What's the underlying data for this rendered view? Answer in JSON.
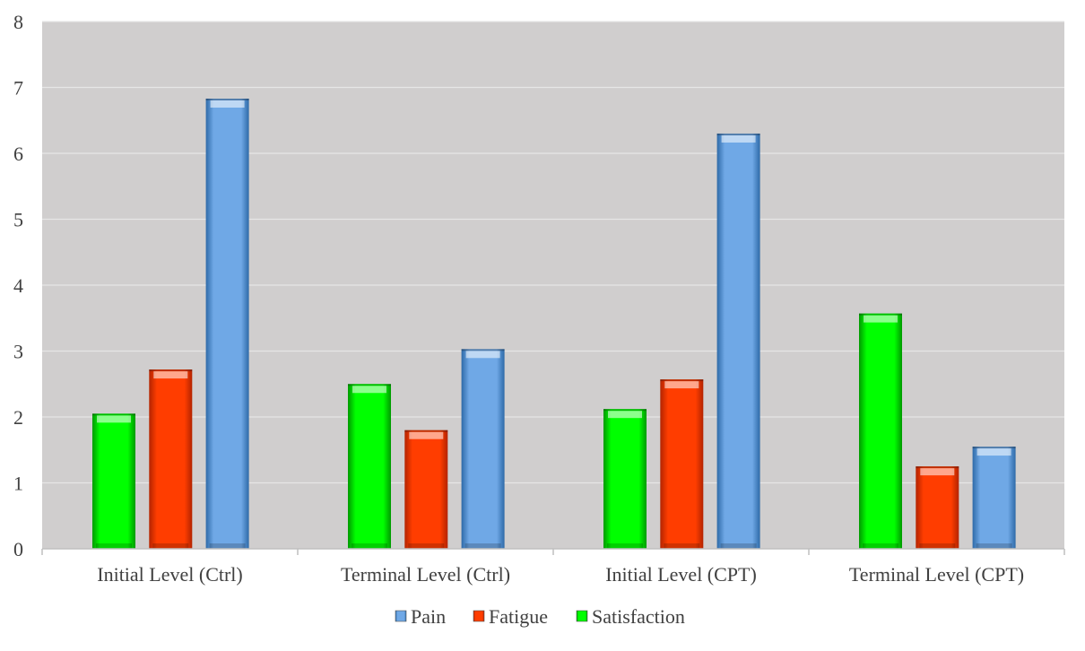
{
  "chart_data": {
    "type": "bar",
    "title": "",
    "xlabel": "",
    "ylabel": "",
    "ylim": [
      0,
      8
    ],
    "yticks": [
      "0",
      "1",
      "2",
      "3",
      "4",
      "5",
      "6",
      "7",
      "8"
    ],
    "grid": true,
    "legend_position": "bottom",
    "categories": [
      "Initial Level (Ctrl)",
      "Terminal Level (Ctrl)",
      "Initial Level (CPT)",
      "Terminal Level (CPT)"
    ],
    "series": [
      {
        "name": "Satisfaction",
        "color": "#00e600",
        "values": [
          2.05,
          2.5,
          2.12,
          3.57
        ]
      },
      {
        "name": "Fatigue",
        "color": "#ff3300",
        "values": [
          2.72,
          1.8,
          2.57,
          1.25
        ]
      },
      {
        "name": "Pain",
        "color": "#5b9bd5",
        "values": [
          6.83,
          3.03,
          6.3,
          1.55
        ]
      }
    ],
    "legend_order": [
      "Pain",
      "Fatigue",
      "Satisfaction"
    ],
    "plot_background": "#d0cece"
  }
}
